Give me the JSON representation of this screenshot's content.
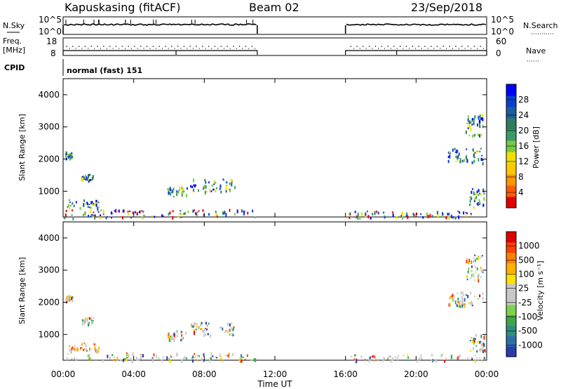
{
  "header": {
    "station": "Kapuskasing (fitACF)",
    "beam": "Beam 02",
    "date": "23/Sep/2018"
  },
  "status_panels": {
    "nsky_label": "N.Sky",
    "nsky_ticks": [
      "10^5",
      "10^0"
    ],
    "nsearch_label": "N.Search",
    "nsearch_ticks": [
      "10^5",
      "10^0"
    ],
    "freq_label": "Freq.",
    "freq_unit": "[MHz]",
    "freq_ticks": [
      "18",
      "8"
    ],
    "nave_label": "Nave",
    "nave_ticks": [
      "60",
      "0"
    ],
    "cpid_label": "CPID",
    "cpid_value": "normal (fast) 151"
  },
  "chart_data": [
    {
      "type": "heatmap",
      "name": "power-panel",
      "ylabel": "Slant Range [km]",
      "xlabel": "Time UT",
      "yticks": [
        "4000",
        "3000",
        "2000",
        "1000"
      ],
      "ylim": [
        200,
        4500
      ],
      "xlim": [
        0,
        24
      ],
      "xticks": [
        "00:00",
        "04:00",
        "08:00",
        "12:00",
        "16:00",
        "20:00",
        "00:00"
      ],
      "data_gap_hours": [
        11,
        16
      ],
      "colorbar": {
        "label": "Power [dB]",
        "ticks": [
          "28",
          "24",
          "20",
          "16",
          "12",
          "8",
          "4"
        ],
        "colors": [
          "#e00000",
          "#ff5a00",
          "#ff9500",
          "#ffc800",
          "#f0e000",
          "#78c842",
          "#3a9a6a",
          "#2e7d5e",
          "#1e5c9e",
          "#0a3fd0",
          "#0000ff"
        ]
      }
    },
    {
      "type": "heatmap",
      "name": "velocity-panel",
      "ylabel": "Slant Range [km]",
      "xlabel": "Time UT",
      "yticks": [
        "4000",
        "3000",
        "2000",
        "1000"
      ],
      "ylim": [
        200,
        4500
      ],
      "xlim": [
        0,
        24
      ],
      "xticks": [
        "00:00",
        "04:00",
        "08:00",
        "12:00",
        "16:00",
        "20:00",
        "00:00"
      ],
      "data_gap_hours": [
        11,
        16
      ],
      "colorbar": {
        "label": "Velocity [m s⁻¹]",
        "ticks": [
          "1000",
          "500",
          "100",
          "25",
          "-25",
          "-100",
          "-500",
          "-1000"
        ],
        "colors": [
          "#2a3ab0",
          "#2e6ea8",
          "#2e8f7a",
          "#3ea64a",
          "#7ed34a",
          "#c8c8c8",
          "#c8c8c8",
          "#ffe000",
          "#ffb000",
          "#ff8000",
          "#ff4000",
          "#e00000"
        ]
      }
    }
  ],
  "scatter_features": [
    {
      "t0": 0.1,
      "t1": 0.5,
      "r0": 2050,
      "r1": 2250
    },
    {
      "t0": 1.0,
      "t1": 1.7,
      "r0": 1350,
      "r1": 1550
    },
    {
      "t0": 0.2,
      "t1": 2.0,
      "r0": 500,
      "r1": 750
    },
    {
      "t0": 0.0,
      "t1": 10.9,
      "r0": 200,
      "r1": 450
    },
    {
      "t0": 5.9,
      "t1": 7.0,
      "r0": 850,
      "r1": 1150
    },
    {
      "t0": 7.2,
      "t1": 9.7,
      "r0": 1000,
      "r1": 1400
    },
    {
      "t0": 21.8,
      "t1": 23.8,
      "r0": 1900,
      "r1": 2350
    },
    {
      "t0": 16.0,
      "t1": 23.9,
      "r0": 200,
      "r1": 400
    },
    {
      "t0": 23.0,
      "t1": 23.9,
      "r0": 500,
      "r1": 1100
    },
    {
      "t0": 22.8,
      "t1": 23.8,
      "r0": 2700,
      "r1": 3500
    }
  ]
}
